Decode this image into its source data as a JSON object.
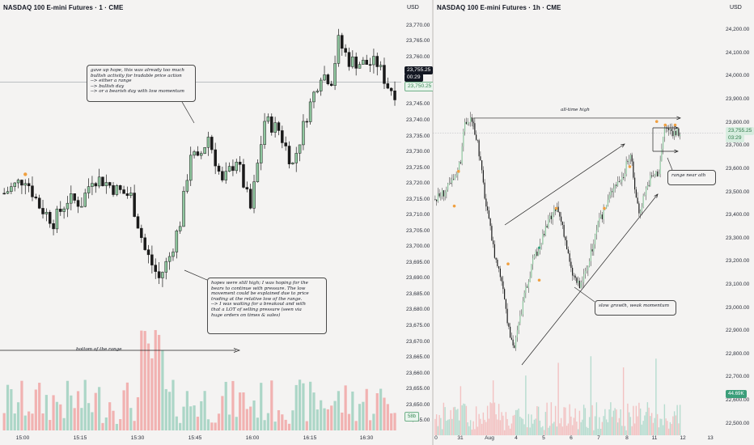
{
  "left_chart": {
    "title": "NASDAQ 100 E-mini Futures · 1 · CME",
    "currency": "USD",
    "price_ticks": [
      "23,770.00",
      "23,765.00",
      "23,760.00",
      "23,755.00",
      "23,750.00",
      "23,745.00",
      "23,740.00",
      "23,735.00",
      "23,730.00",
      "23,725.00",
      "23,720.00",
      "23,715.00",
      "23,710.00",
      "23,705.00",
      "23,700.00",
      "23,695.00",
      "23,690.00",
      "23,685.00",
      "23,680.00",
      "23,675.00",
      "23,670.00",
      "23,665.00",
      "23,660.00",
      "23,655.00",
      "23,650.00",
      "23,645.00"
    ],
    "time_labels": [
      "15:00",
      "15:15",
      "15:30",
      "15:45",
      "16:00",
      "16:15",
      "16:30"
    ],
    "last_price": "23,755.25",
    "countdown": "00:29",
    "secondary_price": "23,750.25",
    "volume_badge": "58b",
    "annotations": {
      "top": "gave up hope, this was already too much\nbullish activity for tradable price action\n--> either a range\n--> bullish day\n--> or a bearish day with low momentum",
      "bottom": "hopes were still high; I was hoping for the\nbears to continue with pressure. The low\nmovement could be explained due to price\ntrading at the relative low of the range.\n--> I was waiting for a breakout and with\nthat a LOT of selling pressure (seen via\nhuge orders on times & sales)",
      "range": "bottom of the range"
    }
  },
  "right_chart": {
    "title": "NASDAQ 100 E-mini Futures · 1h · CME",
    "currency": "USD",
    "price_ticks": [
      "24,200.00",
      "24,100.00",
      "24,000.00",
      "23,900.00",
      "23,800.00",
      "23,700.00",
      "23,600.00",
      "23,500.00",
      "23,400.00",
      "23,300.00",
      "23,200.00",
      "23,100.00",
      "23,000.00",
      "22,900.00",
      "22,800.00",
      "22,700.00",
      "22,600.00",
      "22,500.00"
    ],
    "time_labels": [
      "0",
      "31",
      "Aug",
      "4",
      "5",
      "6",
      "7",
      "8",
      "11",
      "12",
      "13"
    ],
    "last_price": "23,755.25",
    "countdown": "03:29",
    "volume_badge": "44.69K",
    "annotations": {
      "ath": "all-time high",
      "range": "range near ath",
      "growth": "slow growth, weak momentum"
    }
  },
  "chart_data": [
    {
      "type": "candlestick",
      "symbol": "NASDAQ 100 E-mini Futures",
      "interval": "1",
      "ylim": [
        23642,
        23773
      ],
      "x_tick_labels": [
        "15:00",
        "15:15",
        "15:30",
        "15:45",
        "16:00",
        "16:15",
        "16:30"
      ],
      "close_path_anchors": [
        [
          0,
          23717
        ],
        [
          6,
          23722
        ],
        [
          10,
          23713
        ],
        [
          14,
          23708
        ],
        [
          18,
          23715
        ],
        [
          22,
          23714
        ],
        [
          25,
          23722
        ],
        [
          28,
          23721
        ],
        [
          32,
          23718
        ],
        [
          36,
          23716
        ],
        [
          40,
          23699
        ],
        [
          44,
          23690
        ],
        [
          47,
          23697
        ],
        [
          50,
          23708
        ],
        [
          53,
          23730
        ],
        [
          55,
          23727
        ],
        [
          58,
          23735
        ],
        [
          62,
          23720
        ],
        [
          66,
          23728
        ],
        [
          70,
          23712
        ],
        [
          74,
          23740
        ],
        [
          78,
          23737
        ],
        [
          82,
          23726
        ],
        [
          86,
          23742
        ],
        [
          90,
          23755
        ],
        [
          93,
          23753
        ],
        [
          95,
          23765
        ],
        [
          98,
          23759
        ],
        [
          102,
          23758
        ],
        [
          106,
          23758
        ],
        [
          109,
          23751
        ],
        [
          111,
          23749
        ]
      ],
      "last_price": 23755.25,
      "annotated_level": 23752.2
    },
    {
      "type": "candlestick",
      "symbol": "NASDAQ 100 E-mini Futures",
      "interval": "1h",
      "ylim": [
        22450,
        24260
      ],
      "x_tick_labels": [
        "0",
        "31",
        "Aug",
        "4",
        "5",
        "6",
        "7",
        "8",
        "11",
        "12",
        "13"
      ],
      "close_path_anchors": [
        [
          0,
          23470
        ],
        [
          8,
          23510
        ],
        [
          14,
          23560
        ],
        [
          18,
          23640
        ],
        [
          20,
          23780
        ],
        [
          25,
          23820
        ],
        [
          30,
          23720
        ],
        [
          36,
          23440
        ],
        [
          42,
          23230
        ],
        [
          48,
          23100
        ],
        [
          52,
          22900
        ],
        [
          56,
          22830
        ],
        [
          62,
          23020
        ],
        [
          68,
          23180
        ],
        [
          74,
          23270
        ],
        [
          80,
          23370
        ],
        [
          86,
          23430
        ],
        [
          90,
          23360
        ],
        [
          96,
          23160
        ],
        [
          102,
          23090
        ],
        [
          108,
          23180
        ],
        [
          114,
          23340
        ],
        [
          120,
          23430
        ],
        [
          126,
          23530
        ],
        [
          132,
          23560
        ],
        [
          138,
          23670
        ],
        [
          140,
          23560
        ],
        [
          144,
          23410
        ],
        [
          148,
          23500
        ],
        [
          152,
          23560
        ],
        [
          158,
          23590
        ],
        [
          162,
          23780
        ],
        [
          168,
          23760
        ],
        [
          172,
          23755
        ]
      ],
      "all_time_high": 23820,
      "last_price": 23755.25
    }
  ]
}
